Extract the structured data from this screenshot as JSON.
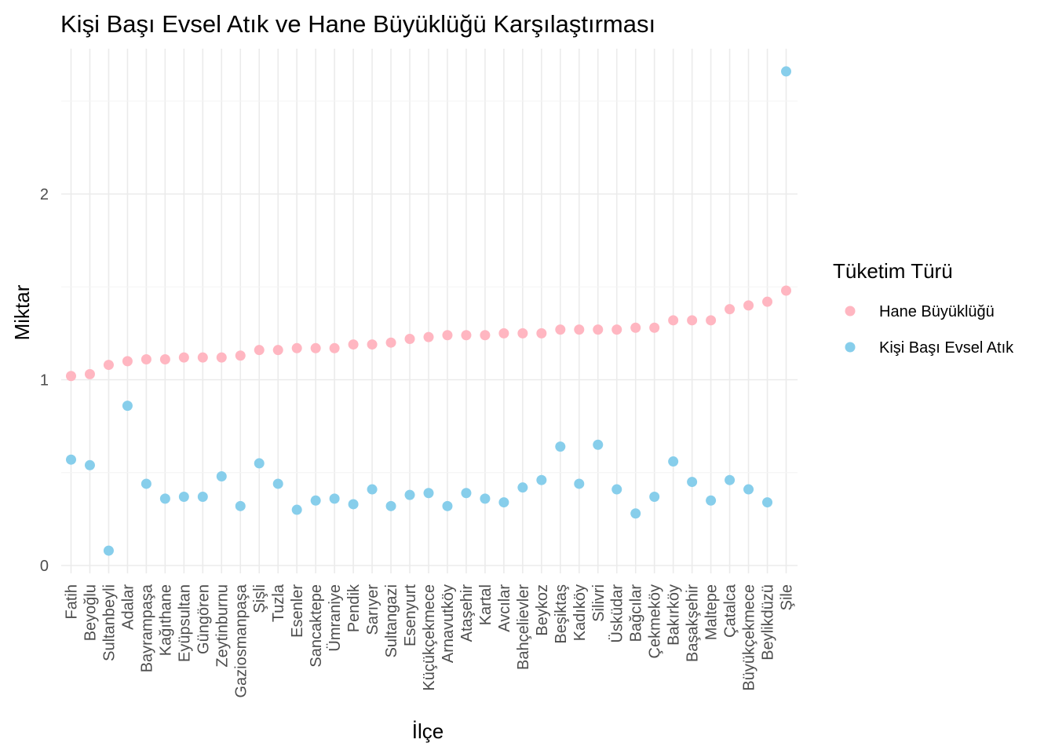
{
  "chart_data": {
    "type": "scatter",
    "title": "Kişi Başı Evsel Atık ve Hane Büyüklüğü Karşılaştırması",
    "xlabel": "İlçe",
    "ylabel": "Miktar",
    "ylim": [
      -0.04,
      2.78
    ],
    "y_ticks": [
      "0",
      "1",
      "2"
    ],
    "grid": true,
    "legend": {
      "title": "Tüketim Türü",
      "placement": "right"
    },
    "categories": [
      "Fatih",
      "Beyoğlu",
      "Sultanbeyli",
      "Adalar",
      "Bayrampaşa",
      "Kağıthane",
      "Eyüpsultan",
      "Güngören",
      "Zeytinburnu",
      "Gaziosmanpaşa",
      "Şişli",
      "Tuzla",
      "Esenler",
      "Sancaktepe",
      "Ümraniye",
      "Pendik",
      "Sarıyer",
      "Sultangazi",
      "Esenyurt",
      "Küçükçekmece",
      "Arnavutköy",
      "Ataşehir",
      "Kartal",
      "Avcılar",
      "Bahçelievler",
      "Beykoz",
      "Beşiktaş",
      "Kadıköy",
      "Silivri",
      "Üsküdar",
      "Bağcılar",
      "Çekmeköy",
      "Bakırköy",
      "Başakşehir",
      "Maltepe",
      "Çatalca",
      "Büyükçekmece",
      "Beylikdüzü",
      "Şile"
    ],
    "series": [
      {
        "name": "Hane Büyüklüğü",
        "color": "#FFB6C1",
        "values": [
          1.02,
          1.03,
          1.08,
          1.1,
          1.11,
          1.11,
          1.12,
          1.12,
          1.12,
          1.13,
          1.16,
          1.16,
          1.17,
          1.17,
          1.17,
          1.19,
          1.19,
          1.2,
          1.22,
          1.23,
          1.24,
          1.24,
          1.24,
          1.25,
          1.25,
          1.25,
          1.27,
          1.27,
          1.27,
          1.27,
          1.28,
          1.28,
          1.32,
          1.32,
          1.32,
          1.38,
          1.4,
          1.42,
          1.48
        ]
      },
      {
        "name": "Kişi Başı Evsel Atık",
        "color": "#87CEEB",
        "values": [
          0.57,
          0.54,
          0.08,
          0.86,
          0.44,
          0.36,
          0.37,
          0.37,
          0.48,
          0.32,
          0.55,
          0.44,
          0.3,
          0.35,
          0.36,
          0.33,
          0.41,
          0.32,
          0.38,
          0.39,
          0.32,
          0.39,
          0.36,
          0.34,
          0.42,
          0.46,
          0.64,
          0.44,
          0.65,
          0.41,
          0.28,
          0.37,
          0.56,
          0.45,
          0.35,
          0.46,
          0.41,
          0.34,
          2.66
        ]
      }
    ]
  }
}
